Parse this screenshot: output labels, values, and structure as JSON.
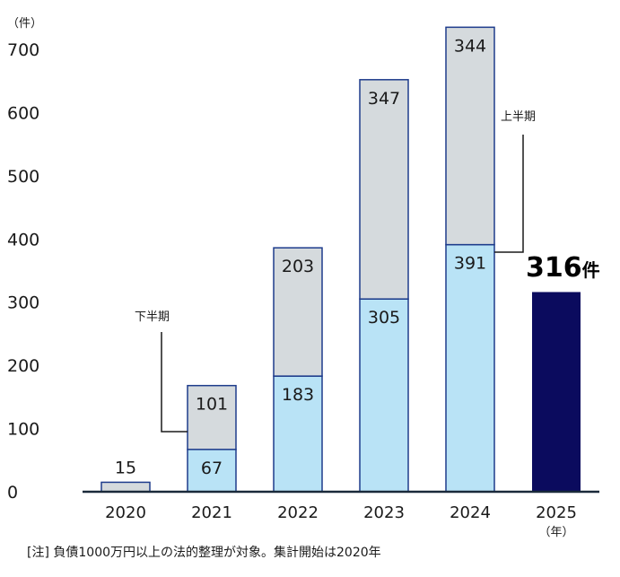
{
  "chart_data": {
    "type": "bar",
    "stacked": true,
    "y_unit_label": "（件）",
    "x_unit_label": "（年）",
    "categories": [
      "2020",
      "2021",
      "2022",
      "2023",
      "2024",
      "2025"
    ],
    "series": [
      {
        "name": "上半期",
        "values": [
          0,
          67,
          183,
          305,
          391,
          316
        ]
      },
      {
        "name": "下半期",
        "values": [
          15,
          101,
          203,
          347,
          344,
          null
        ]
      }
    ],
    "ylim": [
      0,
      700
    ],
    "yticks": [
      0,
      100,
      200,
      300,
      400,
      500,
      600,
      700
    ],
    "grid": false,
    "annotations": {
      "first_half": "上半期",
      "second_half": "下半期"
    },
    "highlight": {
      "category": "2025",
      "value": "316",
      "unit": "件"
    },
    "colors": {
      "first_half": "#b9e3f6",
      "second_half": "#d5dadd",
      "highlight": "#0b0b5e",
      "border": "#1e3c8c",
      "axis": "#1a2a3a"
    },
    "note": "[注] 負債1000万円以上の法的整理が対象。集計開始は2020年"
  }
}
